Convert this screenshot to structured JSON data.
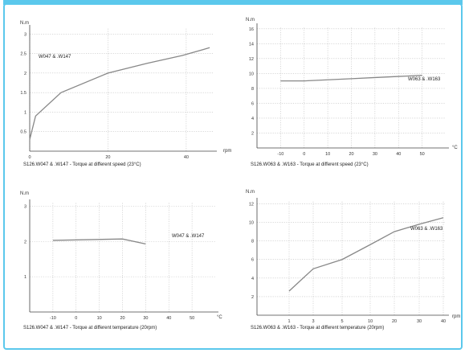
{
  "chart_data": [
    {
      "type": "line",
      "title": "S126.W047 & .W147 - Torque at different speed (23°C)",
      "ylabel": "N.m",
      "xlabel": "rpm",
      "xlim": [
        0,
        47
      ],
      "ylim": [
        0,
        3.15
      ],
      "xticks": [
        0,
        20,
        40
      ],
      "yticks": [
        0.5,
        1,
        1.5,
        2,
        2.5,
        3
      ],
      "series": [
        {
          "name": "W047 & .W147",
          "x": [
            0,
            1.5,
            8,
            20,
            30,
            39,
            46
          ],
          "y": [
            0.3,
            0.9,
            1.5,
            2.0,
            2.25,
            2.45,
            2.65
          ]
        }
      ],
      "grid": true
    },
    {
      "type": "line",
      "title": "S126.W063 & .W163 - Torque at different speed (23°C)",
      "ylabel": "N.m",
      "xlabel": "°C",
      "xlim": [
        -20,
        60
      ],
      "ylim": [
        0,
        16.3
      ],
      "xticks": [
        -10,
        0,
        10,
        20,
        30,
        40,
        50
      ],
      "yticks": [
        2,
        4,
        6,
        8,
        10,
        12,
        14,
        16
      ],
      "series": [
        {
          "name": "W063 & .W163",
          "x": [
            -10,
            0,
            10,
            20,
            30,
            40,
            50
          ],
          "y": [
            9.0,
            9.0,
            9.15,
            9.3,
            9.45,
            9.6,
            9.75
          ]
        }
      ],
      "grid": true
    },
    {
      "type": "line",
      "title": "S126.W047 & .W147 - Torque at different temperature (20rpm)",
      "ylabel": "N.m",
      "xlabel": "°C",
      "xlim": [
        -20,
        60
      ],
      "ylim": [
        0,
        3.1
      ],
      "xticks": [
        -10,
        0,
        10,
        20,
        30,
        40,
        50
      ],
      "yticks": [
        1,
        2,
        3
      ],
      "series": [
        {
          "name": "W047 & .W147",
          "x": [
            -10,
            20,
            30
          ],
          "y": [
            2.03,
            2.07,
            1.93
          ]
        }
      ],
      "grid": true
    },
    {
      "type": "line",
      "title": "S126.W063 & .W163 - Torque at different temperature (20rpm)",
      "ylabel": "N.m",
      "xlabel": "rpm",
      "categories": [
        "1",
        "3",
        "5",
        "10",
        "20",
        "30",
        "40"
      ],
      "ylim": [
        0,
        12.3
      ],
      "yticks": [
        2,
        4,
        6,
        8,
        10,
        12
      ],
      "series": [
        {
          "name": "W063 & .W163",
          "values": [
            2.6,
            5.0,
            6.0,
            7.6,
            9.0,
            9.8,
            10.5
          ]
        }
      ],
      "grid": true
    }
  ]
}
